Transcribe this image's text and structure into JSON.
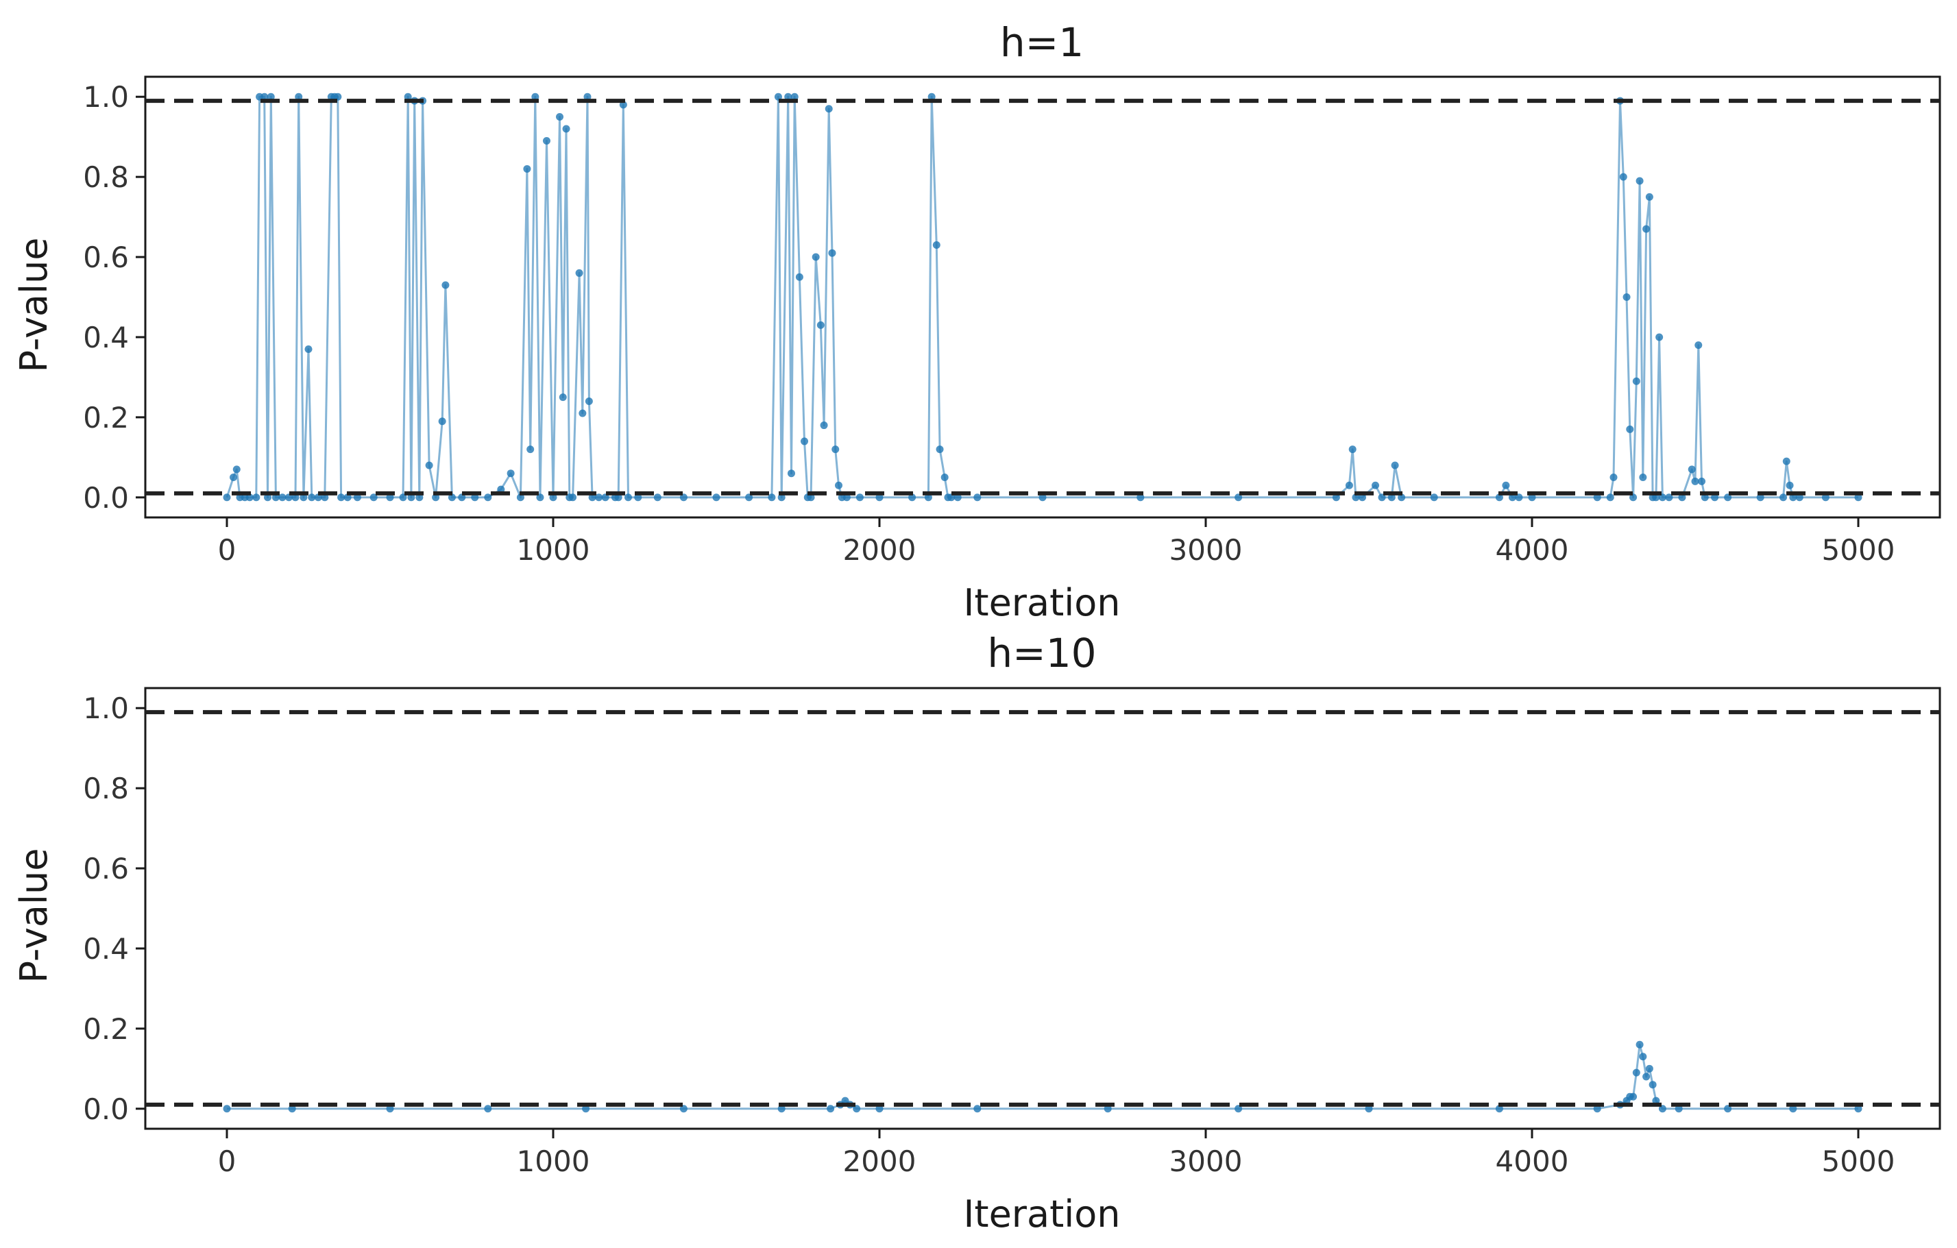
{
  "chart_data": [
    {
      "type": "line",
      "title": "h=1",
      "xlabel": "Iteration",
      "ylabel": "P-value",
      "xlim": [
        -250,
        5250
      ],
      "ylim": [
        -0.05,
        1.05
      ],
      "xticks": [
        0,
        1000,
        2000,
        3000,
        4000,
        5000
      ],
      "yticks": [
        0.0,
        0.2,
        0.4,
        0.6,
        0.8,
        1.0
      ],
      "grid": false,
      "reference_lines": [
        0.99,
        0.01
      ],
      "series": [
        {
          "x": [
            0,
            20,
            30,
            40,
            55,
            70,
            90,
            100,
            115,
            125,
            135,
            150,
            170,
            190,
            210,
            220,
            235,
            250,
            260,
            280,
            300,
            320,
            330,
            340,
            350,
            370,
            400,
            450,
            500,
            540,
            555,
            565,
            575,
            590,
            600,
            620,
            640,
            660,
            670,
            690,
            720,
            760,
            800,
            840,
            870,
            900,
            920,
            930,
            945,
            960,
            980,
            1000,
            1020,
            1030,
            1040,
            1050,
            1060,
            1080,
            1090,
            1105,
            1110,
            1120,
            1140,
            1160,
            1190,
            1200,
            1215,
            1230,
            1260,
            1320,
            1400,
            1500,
            1600,
            1670,
            1690,
            1700,
            1720,
            1730,
            1740,
            1755,
            1770,
            1780,
            1790,
            1805,
            1820,
            1830,
            1845,
            1855,
            1865,
            1875,
            1885,
            1900,
            1940,
            2000,
            2100,
            2150,
            2160,
            2175,
            2185,
            2200,
            2210,
            2220,
            2240,
            2300,
            2500,
            2800,
            3100,
            3400,
            3440,
            3450,
            3460,
            3480,
            3520,
            3540,
            3570,
            3580,
            3600,
            3700,
            3900,
            3920,
            3940,
            3960,
            4000,
            4200,
            4240,
            4250,
            4270,
            4280,
            4290,
            4300,
            4310,
            4320,
            4330,
            4340,
            4350,
            4360,
            4370,
            4380,
            4390,
            4400,
            4420,
            4460,
            4490,
            4500,
            4510,
            4520,
            4530,
            4560,
            4600,
            4700,
            4770,
            4780,
            4790,
            4800,
            4820,
            4900,
            5000
          ],
          "y": [
            0.0,
            0.05,
            0.07,
            0.0,
            0.0,
            0.0,
            0.0,
            1.0,
            1.0,
            0.0,
            1.0,
            0.0,
            0.0,
            0.0,
            0.0,
            1.0,
            0.0,
            0.37,
            0.0,
            0.0,
            0.0,
            1.0,
            1.0,
            1.0,
            0.0,
            0.0,
            0.0,
            0.0,
            0.0,
            0.0,
            1.0,
            0.0,
            0.99,
            0.0,
            0.99,
            0.08,
            0.0,
            0.19,
            0.53,
            0.0,
            0.0,
            0.0,
            0.0,
            0.02,
            0.06,
            0.0,
            0.82,
            0.12,
            1.0,
            0.0,
            0.89,
            0.0,
            0.95,
            0.25,
            0.92,
            0.0,
            0.0,
            0.56,
            0.21,
            1.0,
            0.24,
            0.0,
            0.0,
            0.0,
            0.0,
            0.0,
            0.98,
            0.0,
            0.0,
            0.0,
            0.0,
            0.0,
            0.0,
            0.0,
            1.0,
            0.0,
            1.0,
            0.06,
            1.0,
            0.55,
            0.14,
            0.0,
            0.0,
            0.6,
            0.43,
            0.18,
            0.97,
            0.61,
            0.12,
            0.03,
            0.0,
            0.0,
            0.0,
            0.0,
            0.0,
            0.0,
            1.0,
            0.63,
            0.12,
            0.05,
            0.0,
            0.0,
            0.0,
            0.0,
            0.0,
            0.0,
            0.0,
            0.0,
            0.03,
            0.12,
            0.0,
            0.0,
            0.03,
            0.0,
            0.0,
            0.08,
            0.0,
            0.0,
            0.0,
            0.03,
            0.0,
            0.0,
            0.0,
            0.0,
            0.0,
            0.05,
            0.99,
            0.8,
            0.5,
            0.17,
            0.0,
            0.29,
            0.79,
            0.05,
            0.67,
            0.75,
            0.0,
            0.0,
            0.4,
            0.0,
            0.0,
            0.0,
            0.07,
            0.04,
            0.38,
            0.04,
            0.0,
            0.0,
            0.0,
            0.0,
            0.0,
            0.09,
            0.03,
            0.0,
            0.0,
            0.0,
            0.0
          ]
        }
      ]
    },
    {
      "type": "line",
      "title": "h=10",
      "xlabel": "Iteration",
      "ylabel": "P-value",
      "xlim": [
        -250,
        5250
      ],
      "ylim": [
        -0.05,
        1.05
      ],
      "xticks": [
        0,
        1000,
        2000,
        3000,
        4000,
        5000
      ],
      "yticks": [
        0.0,
        0.2,
        0.4,
        0.6,
        0.8,
        1.0
      ],
      "grid": false,
      "reference_lines": [
        0.99,
        0.01
      ],
      "series": [
        {
          "x": [
            0,
            200,
            500,
            800,
            1100,
            1400,
            1700,
            1850,
            1880,
            1895,
            1910,
            1930,
            2000,
            2300,
            2700,
            3100,
            3500,
            3900,
            4200,
            4270,
            4290,
            4300,
            4310,
            4320,
            4330,
            4340,
            4350,
            4360,
            4370,
            4380,
            4400,
            4450,
            4600,
            4800,
            5000
          ],
          "y": [
            0.0,
            0.0,
            0.0,
            0.0,
            0.0,
            0.0,
            0.0,
            0.0,
            0.01,
            0.02,
            0.01,
            0.0,
            0.0,
            0.0,
            0.0,
            0.0,
            0.0,
            0.0,
            0.0,
            0.01,
            0.02,
            0.03,
            0.03,
            0.09,
            0.16,
            0.13,
            0.08,
            0.1,
            0.06,
            0.02,
            0.0,
            0.0,
            0.0,
            0.0,
            0.0
          ]
        }
      ]
    }
  ]
}
